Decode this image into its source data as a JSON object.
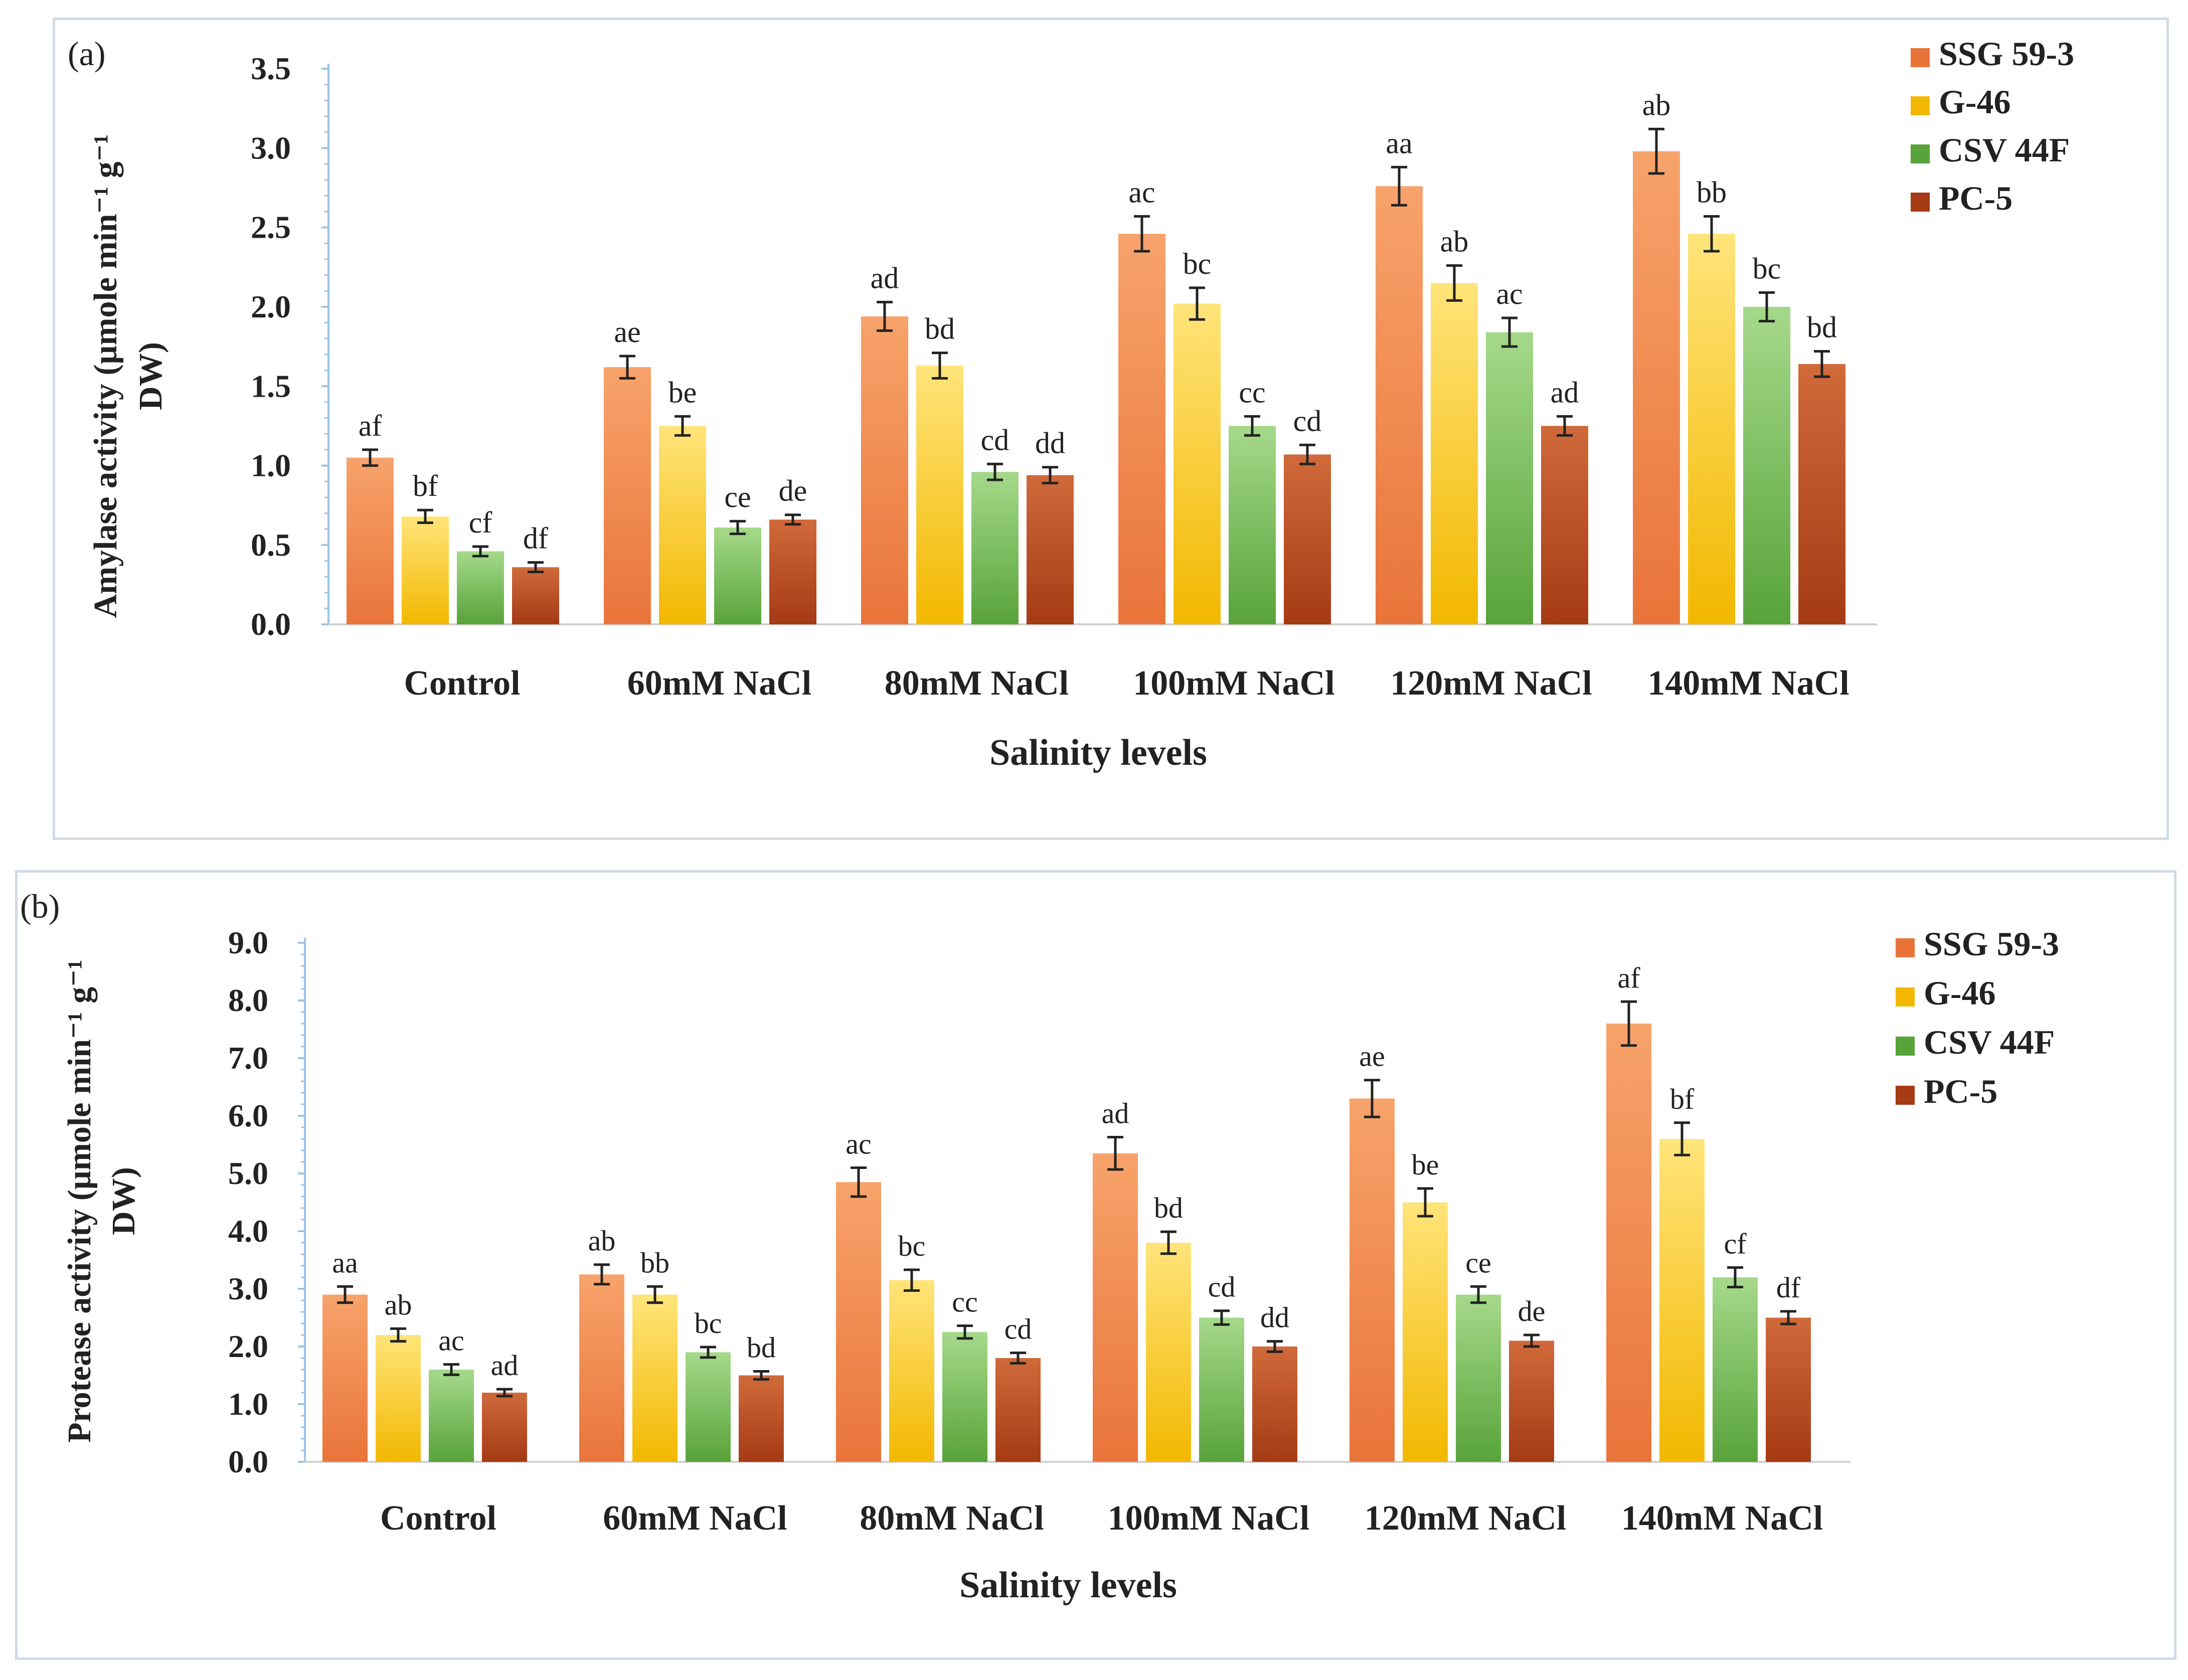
{
  "chart_data": [
    {
      "type": "bar",
      "panel_label": "(a)",
      "title": "",
      "xlabel": "Salinity levels",
      "ylabel": "Amylase activity (µmole min⁻¹ g⁻¹ DW)",
      "ylabel_lines": [
        "Amylase activity (µmole min⁻¹ g⁻¹",
        "DW)"
      ],
      "ylim": [
        0,
        3.5
      ],
      "yticks": [
        "0.0",
        "0.5",
        "1.0",
        "1.5",
        "2.0",
        "2.5",
        "3.0",
        "3.5"
      ],
      "legend_position": "top-right",
      "categories": [
        "Control",
        "60mM  NaCl",
        "80mM  NaCl",
        "100mM  NaCl",
        "120mM  NaCl",
        "140mM  NaCl"
      ],
      "series": [
        {
          "name": "SSG 59-3",
          "values": [
            1.05,
            1.62,
            1.94,
            2.46,
            2.76,
            2.98
          ],
          "errors": [
            0.05,
            0.07,
            0.09,
            0.11,
            0.12,
            0.14
          ],
          "labels": [
            "af",
            "ae",
            "ad",
            "ac",
            "aa",
            "ab"
          ]
        },
        {
          "name": "G-46",
          "values": [
            0.68,
            1.25,
            1.63,
            2.02,
            2.15,
            2.46
          ],
          "errors": [
            0.04,
            0.06,
            0.08,
            0.1,
            0.11,
            0.11
          ],
          "labels": [
            "bf",
            "be",
            "bd",
            "bc",
            "ab",
            "bb"
          ]
        },
        {
          "name": "CSV 44F",
          "values": [
            0.46,
            0.61,
            0.96,
            1.25,
            1.84,
            2.0
          ],
          "errors": [
            0.03,
            0.04,
            0.05,
            0.06,
            0.09,
            0.09
          ],
          "labels": [
            "cf",
            "ce",
            "cd",
            "cc",
            "ac",
            "bc"
          ]
        },
        {
          "name": "PC-5",
          "values": [
            0.36,
            0.66,
            0.94,
            1.07,
            1.25,
            1.64
          ],
          "errors": [
            0.03,
            0.03,
            0.05,
            0.06,
            0.06,
            0.08
          ],
          "labels": [
            "df",
            "de",
            "dd",
            "cd",
            "ad",
            "bd"
          ]
        }
      ]
    },
    {
      "type": "bar",
      "panel_label": "(b)",
      "title": "",
      "xlabel": "Salinity levels",
      "ylabel": "Protease activity (µmole min⁻¹ g⁻¹ DW)",
      "ylabel_lines": [
        "Protease activity (µmole min⁻¹ g⁻¹",
        "DW)"
      ],
      "ylim": [
        0,
        9
      ],
      "yticks": [
        "0.0",
        "1.0",
        "2.0",
        "3.0",
        "4.0",
        "5.0",
        "6.0",
        "7.0",
        "8.0",
        "9.0"
      ],
      "legend_position": "top-right",
      "categories": [
        "Control",
        "60mM  NaCl",
        "80mM  NaCl",
        "100mM  NaCl",
        "120mM  NaCl",
        "140mM  NaCl"
      ],
      "series": [
        {
          "name": "SSG 59-3",
          "values": [
            2.9,
            3.25,
            4.85,
            5.35,
            6.3,
            7.6
          ],
          "errors": [
            0.14,
            0.17,
            0.25,
            0.28,
            0.32,
            0.38
          ],
          "labels": [
            "aa",
            "ab",
            "ac",
            "ad",
            "ae",
            "af"
          ]
        },
        {
          "name": "G-46",
          "values": [
            2.2,
            2.9,
            3.15,
            3.8,
            4.5,
            5.6
          ],
          "errors": [
            0.11,
            0.14,
            0.18,
            0.19,
            0.24,
            0.28
          ],
          "labels": [
            "ab",
            "bb",
            "bc",
            "bd",
            "be",
            "bf"
          ]
        },
        {
          "name": "CSV 44F",
          "values": [
            1.6,
            1.9,
            2.25,
            2.5,
            2.9,
            3.2
          ],
          "errors": [
            0.09,
            0.09,
            0.11,
            0.12,
            0.14,
            0.17
          ],
          "labels": [
            "ac",
            "bc",
            "cc",
            "cd",
            "ce",
            "cf"
          ]
        },
        {
          "name": "PC-5",
          "values": [
            1.2,
            1.5,
            1.8,
            2.0,
            2.1,
            2.5
          ],
          "errors": [
            0.06,
            0.07,
            0.09,
            0.09,
            0.1,
            0.11
          ],
          "labels": [
            "ad",
            "bd",
            "cd",
            "dd",
            "de",
            "df"
          ]
        }
      ]
    }
  ],
  "colors": {
    "SSG 59-3": [
      "#e9743a",
      "#f7a36b"
    ],
    "G-46": [
      "#f2b800",
      "#ffe47a"
    ],
    "CSV 44F": [
      "#58a33a",
      "#a5d98a"
    ],
    "PC-5": [
      "#a53a14",
      "#d06a3a"
    ],
    "axis": "#9dc3e6",
    "text": "#222222"
  }
}
